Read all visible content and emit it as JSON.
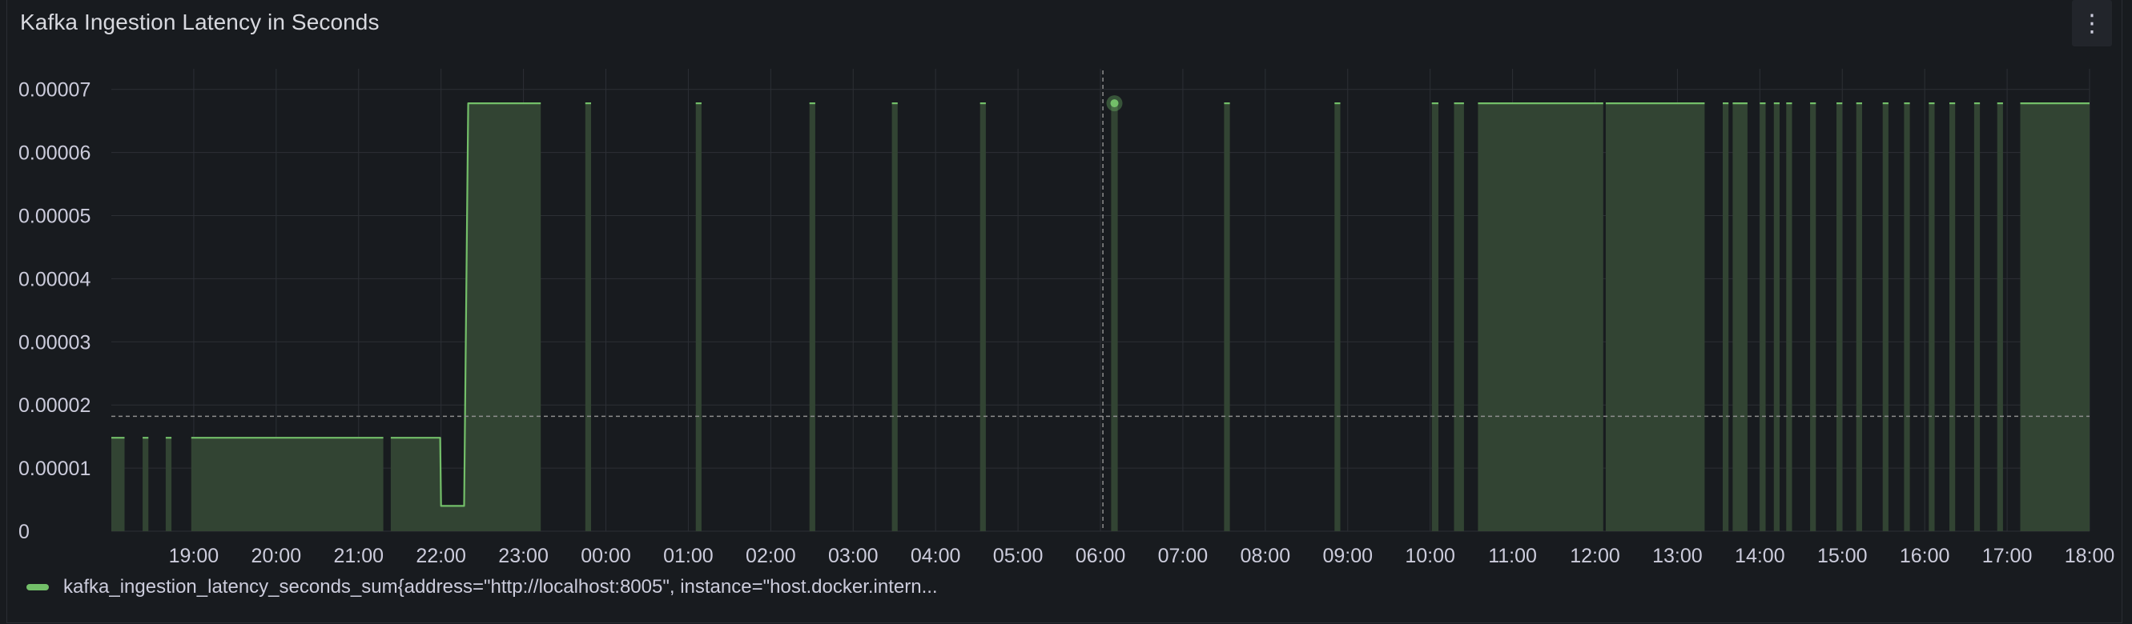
{
  "panel": {
    "title": "Kafka Ingestion Latency in Seconds",
    "menu_icon": "vertical-dots-icon"
  },
  "colors": {
    "series": "#73bf69",
    "fill": "#324433",
    "grid": "#2c2f35",
    "axis_text": "#ccccdc",
    "crosshair": "#8e8e8e"
  },
  "legend": {
    "label": "kafka_ingestion_latency_seconds_sum{address=\"http://localhost:8005\", instance=\"host.docker.intern..."
  },
  "chart_data": {
    "type": "area",
    "title": "Kafka Ingestion Latency in Seconds",
    "xlabel": "",
    "ylabel": "",
    "x_range_hours": [
      18.0,
      42.0
    ],
    "ylim": [
      0,
      7.25e-05
    ],
    "y_ticks": [
      {
        "value": 0,
        "label": "0"
      },
      {
        "value": 1e-05,
        "label": "0.00001"
      },
      {
        "value": 2e-05,
        "label": "0.00002"
      },
      {
        "value": 3e-05,
        "label": "0.00003"
      },
      {
        "value": 4e-05,
        "label": "0.00004"
      },
      {
        "value": 5e-05,
        "label": "0.00005"
      },
      {
        "value": 6e-05,
        "label": "0.00006"
      },
      {
        "value": 7e-05,
        "label": "0.00007"
      }
    ],
    "x_ticks": [
      {
        "value": 19,
        "label": "19:00"
      },
      {
        "value": 20,
        "label": "20:00"
      },
      {
        "value": 21,
        "label": "21:00"
      },
      {
        "value": 22,
        "label": "22:00"
      },
      {
        "value": 23,
        "label": "23:00"
      },
      {
        "value": 24,
        "label": "00:00"
      },
      {
        "value": 25,
        "label": "01:00"
      },
      {
        "value": 26,
        "label": "02:00"
      },
      {
        "value": 27,
        "label": "03:00"
      },
      {
        "value": 28,
        "label": "04:00"
      },
      {
        "value": 29,
        "label": "05:00"
      },
      {
        "value": 30,
        "label": "06:00"
      },
      {
        "value": 31,
        "label": "07:00"
      },
      {
        "value": 32,
        "label": "08:00"
      },
      {
        "value": 33,
        "label": "09:00"
      },
      {
        "value": 34,
        "label": "10:00"
      },
      {
        "value": 35,
        "label": "11:00"
      },
      {
        "value": 36,
        "label": "12:00"
      },
      {
        "value": 37,
        "label": "13:00"
      },
      {
        "value": 38,
        "label": "14:00"
      },
      {
        "value": 39,
        "label": "15:00"
      },
      {
        "value": 40,
        "label": "16:00"
      },
      {
        "value": 41,
        "label": "17:00"
      },
      {
        "value": 42,
        "label": "18:00"
      }
    ],
    "series": [
      {
        "name": "kafka_ingestion_latency_seconds_sum{address=\"http://localhost:8005\", instance=\"host.docker.intern...",
        "segments": [
          {
            "points": [
              [
                18.0,
                1.48e-05
              ],
              [
                18.16,
                1.48e-05
              ]
            ]
          },
          {
            "points": [
              [
                18.38,
                1.48e-05
              ],
              [
                18.45,
                1.48e-05
              ]
            ]
          },
          {
            "points": [
              [
                18.66,
                1.48e-05
              ],
              [
                18.73,
                1.48e-05
              ]
            ]
          },
          {
            "points": [
              [
                18.97,
                1.48e-05
              ],
              [
                20.3,
                1.48e-05
              ],
              [
                21.3,
                1.48e-05
              ]
            ]
          },
          {
            "points": [
              [
                21.39,
                1.48e-05
              ],
              [
                21.99,
                1.48e-05
              ],
              [
                22.0,
                4e-06
              ],
              [
                22.28,
                4e-06
              ],
              [
                22.33,
                6.78e-05
              ],
              [
                23.21,
                6.78e-05
              ]
            ]
          },
          {
            "points": [
              [
                23.75,
                6.78e-05
              ],
              [
                23.82,
                6.78e-05
              ]
            ]
          },
          {
            "points": [
              [
                25.09,
                6.78e-05
              ],
              [
                25.16,
                6.78e-05
              ]
            ]
          },
          {
            "points": [
              [
                26.47,
                6.78e-05
              ],
              [
                26.54,
                6.78e-05
              ]
            ]
          },
          {
            "points": [
              [
                27.47,
                6.78e-05
              ],
              [
                27.54,
                6.78e-05
              ]
            ]
          },
          {
            "points": [
              [
                28.54,
                6.78e-05
              ],
              [
                28.61,
                6.78e-05
              ]
            ]
          },
          {
            "points": [
              [
                30.13,
                6.78e-05
              ],
              [
                30.21,
                6.78e-05
              ]
            ]
          },
          {
            "points": [
              [
                31.5,
                6.78e-05
              ],
              [
                31.57,
                6.78e-05
              ]
            ]
          },
          {
            "points": [
              [
                32.84,
                6.78e-05
              ],
              [
                32.91,
                6.78e-05
              ]
            ]
          },
          {
            "points": [
              [
                34.02,
                6.78e-05
              ],
              [
                34.1,
                6.78e-05
              ]
            ]
          },
          {
            "points": [
              [
                34.29,
                6.78e-05
              ],
              [
                34.41,
                6.78e-05
              ]
            ]
          },
          {
            "points": [
              [
                34.58,
                6.78e-05
              ],
              [
                36.1,
                6.78e-05
              ]
            ]
          },
          {
            "points": [
              [
                36.13,
                6.78e-05
              ],
              [
                37.33,
                6.78e-05
              ]
            ]
          },
          {
            "points": [
              [
                37.55,
                6.78e-05
              ],
              [
                37.62,
                6.78e-05
              ]
            ]
          },
          {
            "points": [
              [
                37.67,
                6.78e-05
              ],
              [
                37.85,
                6.78e-05
              ]
            ]
          },
          {
            "points": [
              [
                38.0,
                6.78e-05
              ],
              [
                38.07,
                6.78e-05
              ]
            ]
          },
          {
            "points": [
              [
                38.17,
                6.78e-05
              ],
              [
                38.24,
                6.78e-05
              ]
            ]
          },
          {
            "points": [
              [
                38.32,
                6.78e-05
              ],
              [
                38.39,
                6.78e-05
              ]
            ]
          },
          {
            "points": [
              [
                38.61,
                6.78e-05
              ],
              [
                38.68,
                6.78e-05
              ]
            ]
          },
          {
            "points": [
              [
                38.93,
                6.78e-05
              ],
              [
                39.0,
                6.78e-05
              ]
            ]
          },
          {
            "points": [
              [
                39.17,
                6.78e-05
              ],
              [
                39.24,
                6.78e-05
              ]
            ]
          },
          {
            "points": [
              [
                39.49,
                6.78e-05
              ],
              [
                39.56,
                6.78e-05
              ]
            ]
          },
          {
            "points": [
              [
                39.75,
                6.78e-05
              ],
              [
                39.82,
                6.78e-05
              ]
            ]
          },
          {
            "points": [
              [
                40.05,
                6.78e-05
              ],
              [
                40.12,
                6.78e-05
              ]
            ]
          },
          {
            "points": [
              [
                40.3,
                6.78e-05
              ],
              [
                40.37,
                6.78e-05
              ]
            ]
          },
          {
            "points": [
              [
                40.6,
                6.78e-05
              ],
              [
                40.67,
                6.78e-05
              ]
            ]
          },
          {
            "points": [
              [
                40.88,
                6.78e-05
              ],
              [
                40.95,
                6.78e-05
              ]
            ]
          },
          {
            "points": [
              [
                41.16,
                6.78e-05
              ],
              [
                42.0,
                6.78e-05
              ]
            ]
          }
        ]
      }
    ],
    "crosshair": {
      "x": 30.03,
      "y": 1.82e-05
    },
    "hover_point": {
      "x": 30.17,
      "y": 6.78e-05
    }
  }
}
